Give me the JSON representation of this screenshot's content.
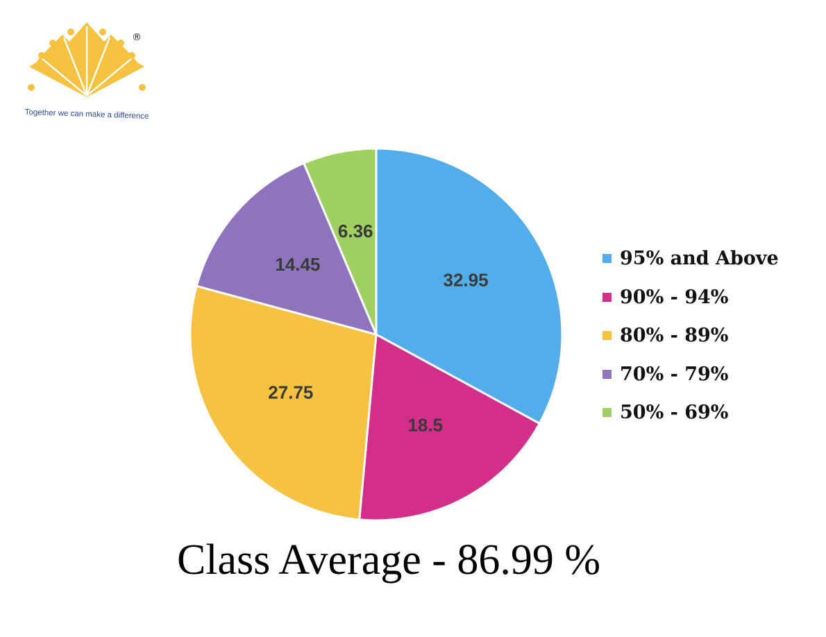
{
  "logo": {
    "tagline": "Together we can make a difference",
    "registered_mark": "®",
    "color": "#f5c242",
    "tagline_color": "#2b4c9a"
  },
  "chart_data": {
    "type": "pie",
    "title": "",
    "series": [
      {
        "values": [
          32.95,
          18.5,
          27.75,
          14.45,
          6.36
        ]
      }
    ],
    "categories": [
      "95% and Above",
      "90% - 94%",
      "80% - 89%",
      "70% - 79%",
      "50% - 69%"
    ],
    "values": [
      32.95,
      18.5,
      27.75,
      14.45,
      6.36
    ],
    "value_labels": [
      "32.95",
      "18.5",
      "27.75",
      "14.45",
      "6.36"
    ],
    "colors": [
      "#52aeea",
      "#d22e8a",
      "#f5c242",
      "#8e74bc",
      "#a1d062"
    ],
    "start_angle": "12 o'clock",
    "direction": "clockwise",
    "legend_position": "right",
    "legend": [
      {
        "label": "95% and Above",
        "color": "#52aeea"
      },
      {
        "label": "90% - 94%",
        "color": "#d22e8a"
      },
      {
        "label": "80% - 89%",
        "color": "#f5c242"
      },
      {
        "label": "70% - 79%",
        "color": "#8e74bc"
      },
      {
        "label": "50% - 69%",
        "color": "#a1d062"
      }
    ]
  },
  "footer": {
    "text": "Class Average - 86.99 %"
  }
}
